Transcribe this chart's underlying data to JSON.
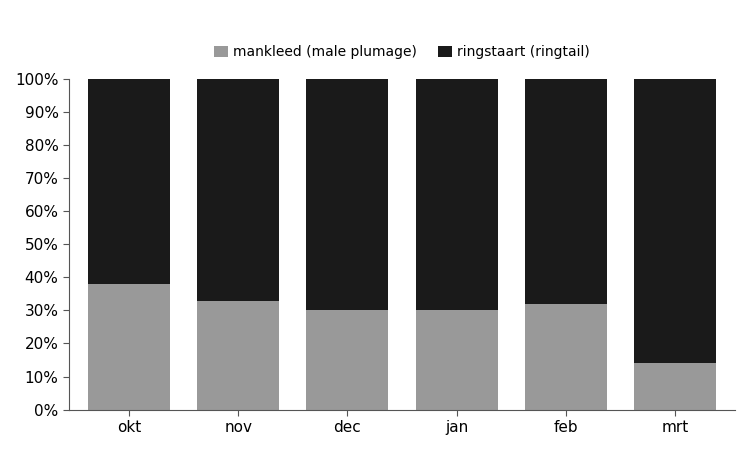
{
  "categories": [
    "okt",
    "nov",
    "dec",
    "jan",
    "feb",
    "mrt"
  ],
  "mankleed": [
    38,
    33,
    30,
    30,
    32,
    14
  ],
  "ringstaart": [
    62,
    67,
    70,
    70,
    68,
    86
  ],
  "mankleed_color": "#999999",
  "ringstaart_color": "#1a1a1a",
  "legend_mankleed": "mankleed (male plumage)",
  "legend_ringstaart": "ringstaart (ringtail)",
  "ylabel_ticks": [
    "0%",
    "10%",
    "20%",
    "30%",
    "40%",
    "50%",
    "60%",
    "70%",
    "80%",
    "90%",
    "100%"
  ],
  "ytick_vals": [
    0,
    10,
    20,
    30,
    40,
    50,
    60,
    70,
    80,
    90,
    100
  ],
  "bar_width": 0.75,
  "background_color": "#ffffff",
  "edge_color": "#000000"
}
